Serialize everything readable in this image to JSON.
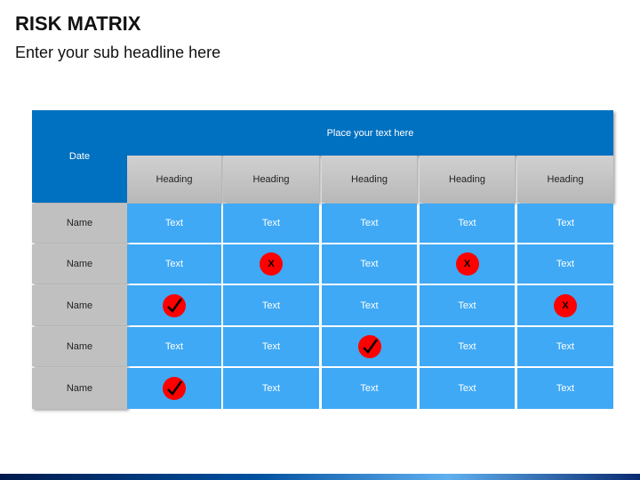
{
  "header": {
    "title": "RISK MATRIX",
    "subtitle": "Enter your sub headline here"
  },
  "table": {
    "corner": "Date",
    "banner": "Place your text here",
    "headings": [
      "Heading",
      "Heading",
      "Heading",
      "Heading",
      "Heading"
    ],
    "rows": [
      {
        "name": "Name",
        "cells": [
          "Text",
          "Text",
          "Text",
          "Text",
          "Text"
        ]
      },
      {
        "name": "Name",
        "cells": [
          "Text",
          {
            "icon": "x",
            "label": "X"
          },
          "Text",
          {
            "icon": "x",
            "label": "X"
          },
          "Text"
        ]
      },
      {
        "name": "Name",
        "cells": [
          {
            "icon": "check"
          },
          "Text",
          "Text",
          "Text",
          {
            "icon": "x",
            "label": "X"
          }
        ]
      },
      {
        "name": "Name",
        "cells": [
          "Text",
          "Text",
          {
            "icon": "check"
          },
          "Text",
          "Text"
        ]
      },
      {
        "name": "Name",
        "cells": [
          {
            "icon": "check"
          },
          "Text",
          "Text",
          "Text",
          "Text"
        ]
      }
    ]
  }
}
